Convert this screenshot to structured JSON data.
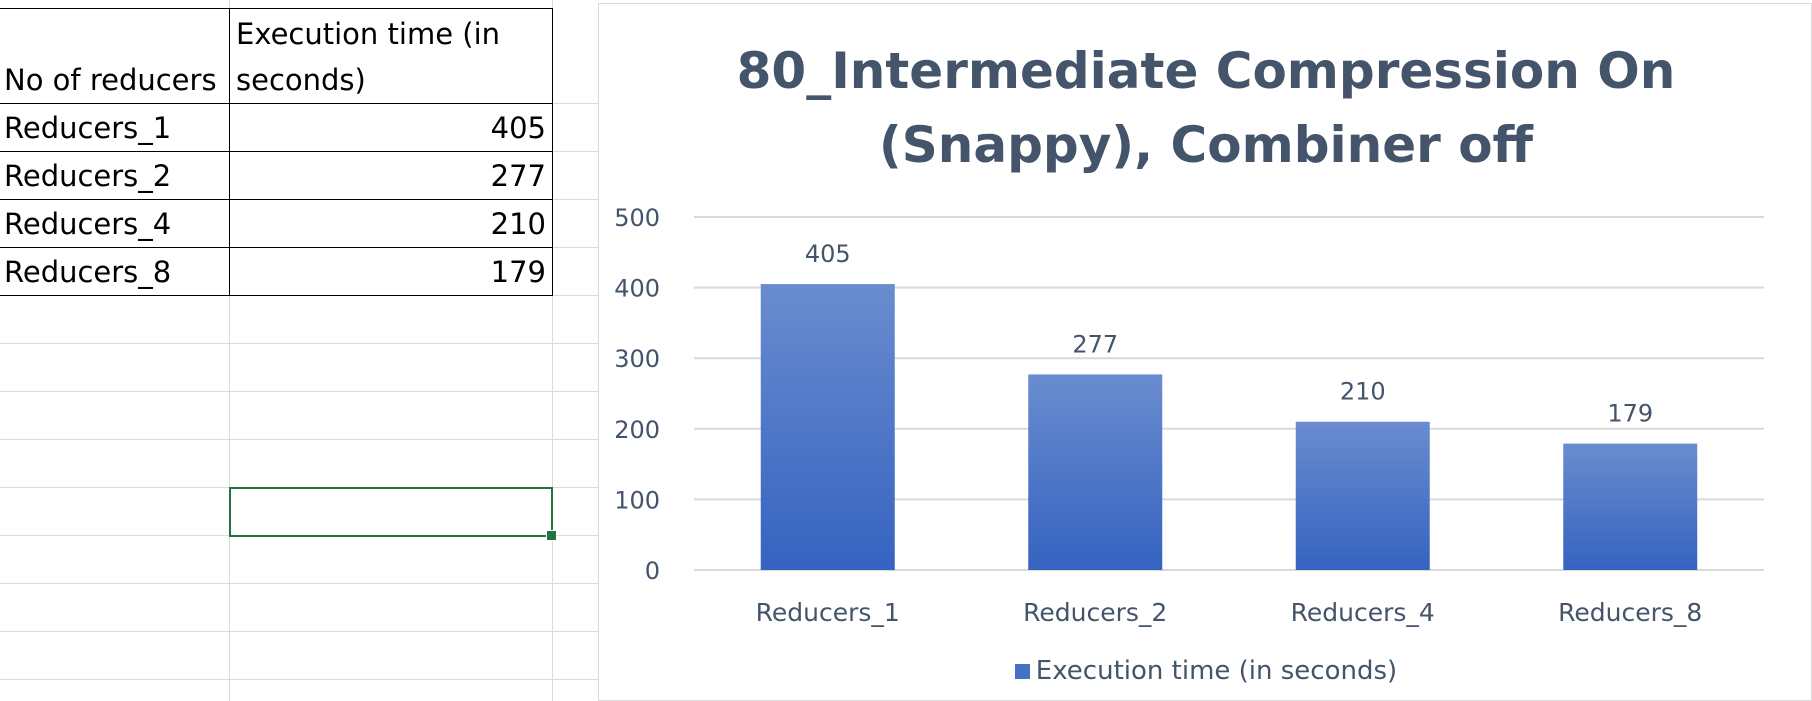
{
  "sheet": {
    "table": {
      "headers": [
        "No of reducers",
        "Execution time (in seconds)"
      ],
      "header_line1": "Execution time (in",
      "header_line2": "seconds)",
      "rows": [
        {
          "label": "Reducers_1",
          "value": "405"
        },
        {
          "label": "Reducers_2",
          "value": "277"
        },
        {
          "label": "Reducers_4",
          "value": "210"
        },
        {
          "label": "Reducers_8",
          "value": "179"
        }
      ]
    }
  },
  "chart_data": {
    "type": "bar",
    "title_line1": "80_Intermediate Compression On",
    "title_line2": "(Snappy), Combiner off",
    "categories": [
      "Reducers_1",
      "Reducers_2",
      "Reducers_4",
      "Reducers_8"
    ],
    "series": [
      {
        "name": "Execution time (in seconds)",
        "values": [
          405,
          277,
          210,
          179
        ]
      }
    ],
    "ylim": [
      0,
      500
    ],
    "yticks": [
      0,
      100,
      200,
      300,
      400,
      500
    ],
    "grid": true,
    "legend": "bottom",
    "data_labels": true,
    "colors": {
      "bar_top": "#6a8ccf",
      "bar_bottom": "#3563c0",
      "gridline": "#d9d9d9",
      "text": "#44546a"
    }
  }
}
